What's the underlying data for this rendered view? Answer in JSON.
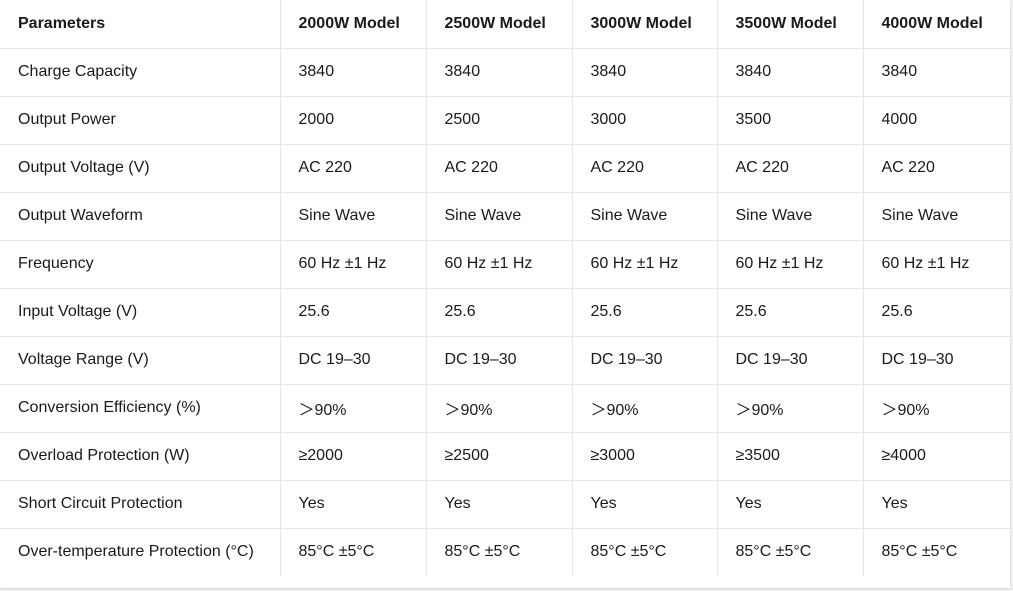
{
  "table": {
    "header": [
      "Parameters",
      "2000W Model",
      "2500W Model",
      "3000W Model",
      "3500W Model",
      "4000W Model"
    ],
    "rows": [
      [
        "Charge Capacity",
        "3840",
        "3840",
        "3840",
        "3840",
        "3840"
      ],
      [
        "Output Power",
        "2000",
        "2500",
        "3000",
        "3500",
        "4000"
      ],
      [
        "Output Voltage (V)",
        "AC 220",
        "AC 220",
        "AC 220",
        "AC 220",
        "AC 220"
      ],
      [
        "Output Waveform",
        "Sine Wave",
        "Sine Wave",
        "Sine Wave",
        "Sine Wave",
        "Sine Wave"
      ],
      [
        "Frequency",
        "60 Hz ±1 Hz",
        "60 Hz ±1 Hz",
        "60 Hz ±1 Hz",
        "60 Hz ±1 Hz",
        "60 Hz ±1 Hz"
      ],
      [
        "Input Voltage (V)",
        "25.6",
        "25.6",
        "25.6",
        "25.6",
        "25.6"
      ],
      [
        "Voltage Range (V)",
        "DC 19–30",
        "DC 19–30",
        "DC 19–30",
        "DC 19–30",
        "DC 19–30"
      ],
      [
        "Conversion Efficiency (%)",
        "＞90%",
        "＞90%",
        "＞90%",
        "＞90%",
        "＞90%"
      ],
      [
        "Overload Protection (W)",
        "≥2000",
        "≥2500",
        "≥3000",
        "≥3500",
        "≥4000"
      ],
      [
        "Short Circuit Protection",
        "Yes",
        "Yes",
        "Yes",
        "Yes",
        "Yes"
      ],
      [
        "Over-temperature Protection (°C)",
        "85°C ±5°C",
        "85°C ±5°C",
        "85°C ±5°C",
        "85°C ±5°C",
        "85°C ±5°C"
      ]
    ]
  }
}
